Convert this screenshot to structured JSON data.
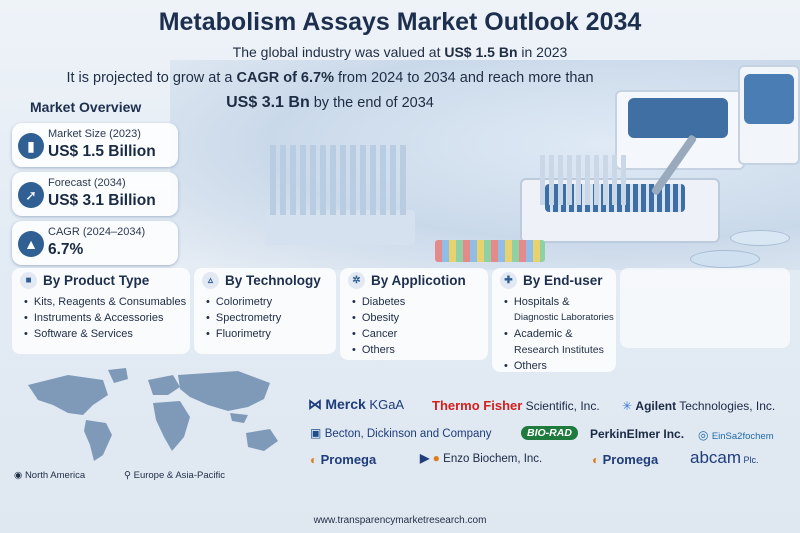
{
  "title": "Metabolism Assays Market Outlook 2034",
  "intro": {
    "line1_pre": "The global industry was valued at ",
    "line1_bold": "US$ 1.5 Bn",
    "line1_post": " in 2023",
    "line2_pre": "It is projected to grow at a ",
    "line2_bold": "CAGR of 6.7%",
    "line2_post": " from 2024 to 2034 and reach more than",
    "line3_bold": "US$ 3.1 Bn",
    "line3_post": " by the end of 2034"
  },
  "market_overview": {
    "heading": "Market Overview",
    "stats": [
      {
        "label": "Market Size (2023)",
        "value": "US$ 1.5 Billion",
        "icon": "bar-chart-icon"
      },
      {
        "label": "Forecast (2034)",
        "value": "US$ 3.1 Billion",
        "icon": "rocket-icon"
      },
      {
        "label": "CAGR (2024–2034)",
        "value": "6.7%",
        "icon": "growth-chart-icon"
      }
    ]
  },
  "segments": {
    "product": {
      "title": "By Product Type",
      "icon": "box-icon",
      "items": [
        "Kits, Reagents & Consumables",
        "Instruments & Accessories",
        "Software & Services"
      ]
    },
    "technology": {
      "title": "By Technology",
      "icon": "flask-icon",
      "items": [
        "Colorimetry",
        "Spectrometry",
        "Fluorimetry"
      ]
    },
    "application": {
      "title": "By Applicotion",
      "icon": "gear-icon",
      "items": [
        "Diabetes",
        "Obesity",
        "Cancer",
        "Others"
      ]
    },
    "enduser": {
      "title": "By End-user",
      "icon": "hospital-icon",
      "items": [
        "Hospitals &",
        "Diagnostic Laboratories",
        "Academic &",
        "Research Institutes",
        "Others"
      ]
    }
  },
  "regions": {
    "left": "North America",
    "right": "Europe & Asia-Pacific"
  },
  "companies": {
    "merck_a": "Merck",
    "merck_b": " KGaA",
    "thermo_a": "Thermo Fisher",
    "thermo_b": " Scientific, Inc.",
    "agilent_a": "Agilent",
    "agilent_b": " Technologies, Inc.",
    "becton": "Becton, Dickinson and Company",
    "biorad": "BIO-RAD",
    "perkin": "PerkinElmer Inc.",
    "einsa": "EinSa2fochem",
    "promega1": "Promega",
    "enzo": "Enzo Biochem, Inc.",
    "promega2": "Promega",
    "abcam_a": "abcam",
    "abcam_b": " Plc."
  },
  "footer": "www.transparencymarketresearch.com",
  "colors": {
    "title": "#1d2f4e",
    "accent": "#2f5f93",
    "thermo_red": "#d2201e",
    "promega_orange": "#e07b1a"
  }
}
